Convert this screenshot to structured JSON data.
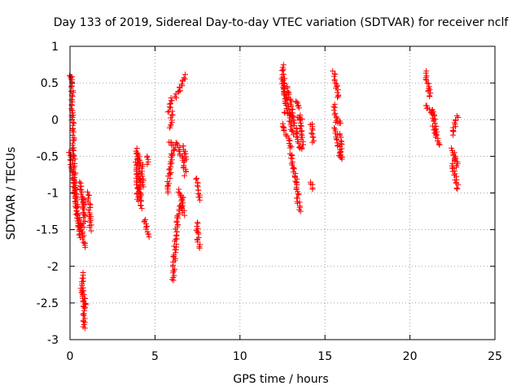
{
  "chart_data": {
    "type": "scatter",
    "title": "Day 133 of 2019, Sidereal Day-to-day VTEC variation (SDTVAR) for receiver nclf",
    "xlabel": "GPS time / hours",
    "ylabel": "SDTVAR / TECUs",
    "xlim": [
      0,
      25
    ],
    "ylim": [
      -3,
      1
    ],
    "xticks": [
      "0",
      "5",
      "10",
      "15",
      "20",
      "25"
    ],
    "yticks": [
      "1",
      "0.5",
      "0",
      "-0.5",
      "-1",
      "-1.5",
      "-2",
      "-2.5",
      "-3"
    ],
    "grid": true,
    "marker": "plus",
    "colors": {
      "series": "#ff0000",
      "grid": "#a0a0a0",
      "axes": "#000000"
    },
    "series": [
      {
        "name": "SDTVAR",
        "segments": [
          {
            "x0": 0.0,
            "y0": 0.6,
            "x1": 0.1,
            "y1": 0.58
          },
          {
            "x0": 0.1,
            "y0": 0.58,
            "x1": 0.2,
            "y1": -0.4
          },
          {
            "x0": 0.2,
            "y0": -0.4,
            "x1": 0.4,
            "y1": -1.3
          },
          {
            "x0": 0.4,
            "y0": -1.3,
            "x1": 0.55,
            "y1": -1.6
          },
          {
            "x0": 0.0,
            "y0": -0.45,
            "x1": 0.3,
            "y1": -1.0
          },
          {
            "x0": 0.3,
            "y0": -1.0,
            "x1": 0.6,
            "y1": -1.5
          },
          {
            "x0": 0.6,
            "y0": -1.4,
            "x1": 0.9,
            "y1": -1.75
          },
          {
            "x0": 0.6,
            "y0": -0.85,
            "x1": 0.8,
            "y1": -1.2
          },
          {
            "x0": 0.75,
            "y0": -2.1,
            "x1": 0.85,
            "y1": -2.85
          },
          {
            "x0": 0.7,
            "y0": -2.3,
            "x1": 0.9,
            "y1": -2.55
          },
          {
            "x0": 0.8,
            "y0": -1.05,
            "x1": 0.85,
            "y1": -1.45
          },
          {
            "x0": 1.1,
            "y0": -1.0,
            "x1": 1.2,
            "y1": -1.5
          },
          {
            "x0": 3.9,
            "y0": -0.4,
            "x1": 4.0,
            "y1": -1.1
          },
          {
            "x0": 4.0,
            "y0": -0.45,
            "x1": 4.2,
            "y1": -1.2
          },
          {
            "x0": 4.2,
            "y0": -0.6,
            "x1": 4.3,
            "y1": -0.9
          },
          {
            "x0": 4.4,
            "y0": -1.35,
            "x1": 4.6,
            "y1": -1.6
          },
          {
            "x0": 4.5,
            "y0": -0.5,
            "x1": 4.6,
            "y1": -0.6
          },
          {
            "x0": 5.7,
            "y0": -1.0,
            "x1": 6.0,
            "y1": -0.5
          },
          {
            "x0": 6.0,
            "y0": -0.5,
            "x1": 6.3,
            "y1": -0.3
          },
          {
            "x0": 5.8,
            "y0": -0.3,
            "x1": 6.1,
            "y1": -0.35
          },
          {
            "x0": 5.8,
            "y0": 0.1,
            "x1": 6.0,
            "y1": 0.3
          },
          {
            "x0": 6.2,
            "y0": 0.3,
            "x1": 6.8,
            "y1": 0.6
          },
          {
            "x0": 5.9,
            "y0": -0.1,
            "x1": 6.0,
            "y1": 0.1
          },
          {
            "x0": 6.4,
            "y0": -0.35,
            "x1": 6.8,
            "y1": -0.75
          },
          {
            "x0": 6.7,
            "y0": -0.35,
            "x1": 6.8,
            "y1": -0.55
          },
          {
            "x0": 6.05,
            "y0": -2.2,
            "x1": 6.3,
            "y1": -1.35
          },
          {
            "x0": 6.3,
            "y0": -1.35,
            "x1": 6.7,
            "y1": -1.05
          },
          {
            "x0": 6.4,
            "y0": -0.95,
            "x1": 6.7,
            "y1": -1.3
          },
          {
            "x0": 7.45,
            "y0": -0.8,
            "x1": 7.6,
            "y1": -1.1
          },
          {
            "x0": 7.45,
            "y0": -1.4,
            "x1": 7.6,
            "y1": -1.75
          },
          {
            "x0": 12.5,
            "y0": 0.75,
            "x1": 12.7,
            "y1": 0.2
          },
          {
            "x0": 12.5,
            "y0": 0.55,
            "x1": 13.1,
            "y1": -0.2
          },
          {
            "x0": 12.5,
            "y0": -0.05,
            "x1": 13.0,
            "y1": -0.4
          },
          {
            "x0": 12.8,
            "y0": 0.45,
            "x1": 13.5,
            "y1": -0.4
          },
          {
            "x0": 12.6,
            "y0": 0.1,
            "x1": 13.6,
            "y1": 0.0
          },
          {
            "x0": 13.3,
            "y0": 0.25,
            "x1": 13.5,
            "y1": 0.15
          },
          {
            "x0": 13.0,
            "y0": -0.45,
            "x1": 13.3,
            "y1": -0.85
          },
          {
            "x0": 13.3,
            "y0": -0.85,
            "x1": 13.5,
            "y1": -1.25
          },
          {
            "x0": 13.5,
            "y0": 0.05,
            "x1": 13.7,
            "y1": -0.4
          },
          {
            "x0": 14.2,
            "y0": -0.05,
            "x1": 14.3,
            "y1": -0.3
          },
          {
            "x0": 14.2,
            "y0": -0.85,
            "x1": 14.3,
            "y1": -0.95
          },
          {
            "x0": 15.5,
            "y0": 0.65,
            "x1": 15.8,
            "y1": 0.3
          },
          {
            "x0": 15.5,
            "y0": 0.2,
            "x1": 15.7,
            "y1": -0.05
          },
          {
            "x0": 15.6,
            "y0": -0.1,
            "x1": 15.9,
            "y1": -0.5
          },
          {
            "x0": 15.9,
            "y0": -0.2,
            "x1": 16.0,
            "y1": -0.55
          },
          {
            "x0": 15.8,
            "y0": 0.0,
            "x1": 15.9,
            "y1": -0.05
          },
          {
            "x0": 20.9,
            "y0": 0.65,
            "x1": 21.2,
            "y1": 0.3
          },
          {
            "x0": 20.9,
            "y0": 0.2,
            "x1": 21.4,
            "y1": 0.05
          },
          {
            "x0": 21.3,
            "y0": 0.15,
            "x1": 21.6,
            "y1": -0.2
          },
          {
            "x0": 21.4,
            "y0": -0.1,
            "x1": 21.7,
            "y1": -0.35
          },
          {
            "x0": 22.5,
            "y0": -0.2,
            "x1": 22.8,
            "y1": 0.05
          },
          {
            "x0": 22.5,
            "y0": -0.4,
            "x1": 22.8,
            "y1": -0.65
          },
          {
            "x0": 22.5,
            "y0": -0.6,
            "x1": 22.8,
            "y1": -0.95
          },
          {
            "x0": 22.6,
            "y0": -0.5,
            "x1": 22.7,
            "y1": -0.55
          }
        ]
      }
    ]
  }
}
